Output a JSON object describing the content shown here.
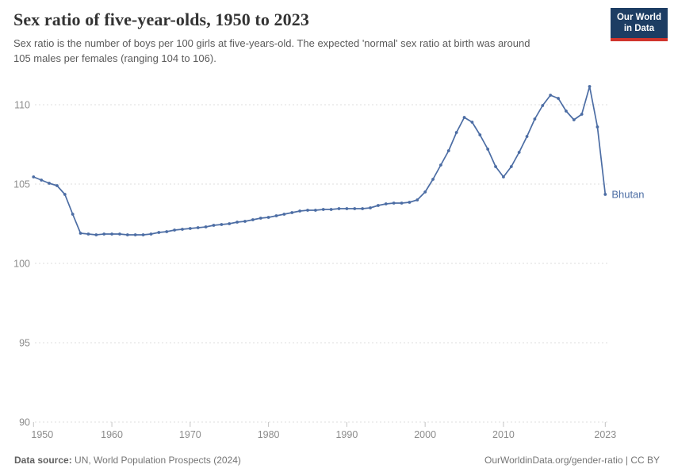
{
  "header": {
    "title": "Sex ratio of five-year-olds, 1950 to 2023",
    "subtitle": "Sex ratio is the number of boys per 100 girls at five-years-old. The expected 'normal' sex ratio at birth was around 105 males per females (ranging 104 to 106)."
  },
  "logo": {
    "line1": "Our World",
    "line2": "in Data",
    "bg_color": "#1d3d63",
    "accent_color": "#d0342c"
  },
  "chart_data": {
    "type": "line",
    "title": "Sex ratio of five-year-olds, 1950 to 2023",
    "xlabel": "",
    "ylabel": "",
    "grid": "horizontal-dashed",
    "legend_position": "end-of-line-label",
    "xlim": [
      1950,
      2023
    ],
    "ylim": [
      90,
      112
    ],
    "x_ticks": [
      1950,
      1960,
      1970,
      1980,
      1990,
      2000,
      2010,
      2023
    ],
    "y_ticks": [
      90,
      95,
      100,
      105,
      110
    ],
    "years": [
      1950,
      1951,
      1952,
      1953,
      1954,
      1955,
      1956,
      1957,
      1958,
      1959,
      1960,
      1961,
      1962,
      1963,
      1964,
      1965,
      1966,
      1967,
      1968,
      1969,
      1970,
      1971,
      1972,
      1973,
      1974,
      1975,
      1976,
      1977,
      1978,
      1979,
      1980,
      1981,
      1982,
      1983,
      1984,
      1985,
      1986,
      1987,
      1988,
      1989,
      1990,
      1991,
      1992,
      1993,
      1994,
      1995,
      1996,
      1997,
      1998,
      1999,
      2000,
      2001,
      2002,
      2003,
      2004,
      2005,
      2006,
      2007,
      2008,
      2009,
      2010,
      2011,
      2012,
      2013,
      2014,
      2015,
      2016,
      2017,
      2018,
      2019,
      2020,
      2021,
      2022,
      2023
    ],
    "series": [
      {
        "name": "Bhutan",
        "color": "#4c6da4",
        "values": [
          105.45,
          105.25,
          105.05,
          104.9,
          104.35,
          103.1,
          101.9,
          101.85,
          101.8,
          101.85,
          101.85,
          101.85,
          101.8,
          101.8,
          101.8,
          101.85,
          101.95,
          102.0,
          102.1,
          102.15,
          102.2,
          102.25,
          102.3,
          102.4,
          102.45,
          102.5,
          102.6,
          102.65,
          102.75,
          102.85,
          102.9,
          103.0,
          103.1,
          103.2,
          103.3,
          103.35,
          103.35,
          103.4,
          103.4,
          103.45,
          103.45,
          103.45,
          103.45,
          103.5,
          103.65,
          103.75,
          103.8,
          103.8,
          103.85,
          104.0,
          104.5,
          105.3,
          106.2,
          107.1,
          108.25,
          109.2,
          108.9,
          108.1,
          107.2,
          106.1,
          105.45,
          106.1,
          107.0,
          108.0,
          109.1,
          109.95,
          110.6,
          110.4,
          109.6,
          109.05,
          109.4,
          111.15,
          108.6,
          104.35
        ]
      }
    ]
  },
  "footer": {
    "source_label": "Data source:",
    "source_text": " UN, World Population Prospects (2024)",
    "link_text": "OurWorldinData.org/gender-ratio",
    "license_text": " | CC BY"
  }
}
